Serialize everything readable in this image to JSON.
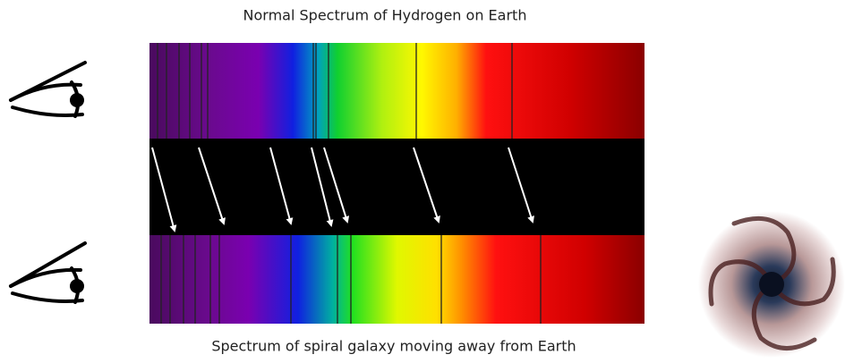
{
  "top_label": "Normal Spectrum of Hydrogen on Earth",
  "bottom_label": "Spectrum of spiral galaxy moving away from Earth"
}
